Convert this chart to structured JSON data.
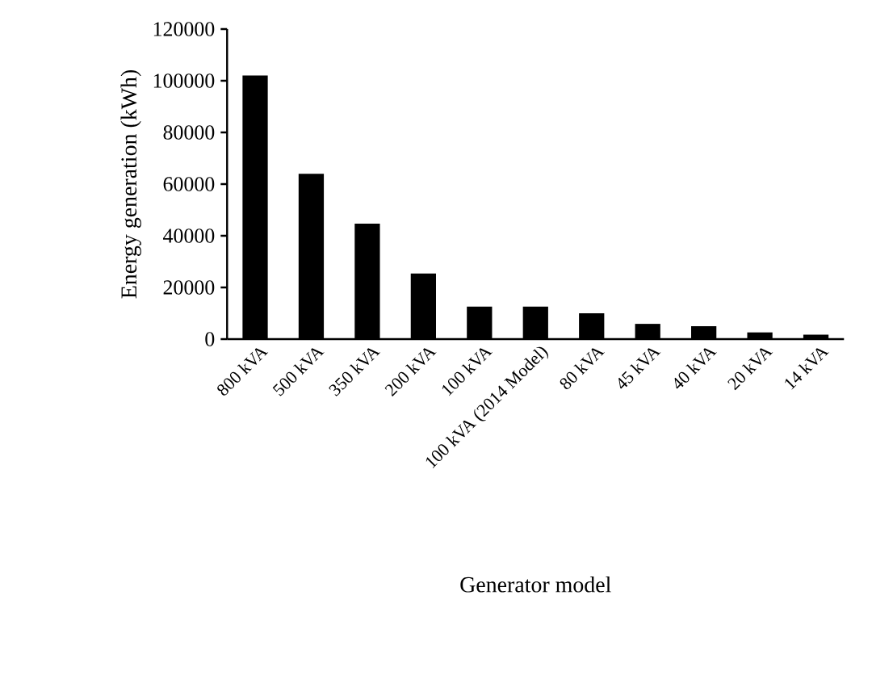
{
  "chart_data": {
    "type": "bar",
    "xlabel": "Generator model",
    "ylabel": "Energy generation (kWh)",
    "categories": [
      "800 kVA",
      "500 kVA",
      "350 kVA",
      "200 kVA",
      "100 kVA",
      "100 kVA (2014 Model)",
      "80 kVA",
      "45 kVA",
      "40 kVA",
      "20 kVA",
      "14 kVA"
    ],
    "values": [
      102000,
      64000,
      44700,
      25400,
      12600,
      12600,
      10000,
      5900,
      5000,
      2600,
      1700
    ],
    "color": "#000000",
    "ylim": [
      0,
      120000
    ],
    "yticks": [
      0,
      20000,
      40000,
      60000,
      80000,
      100000,
      120000
    ],
    "grid": false
  }
}
